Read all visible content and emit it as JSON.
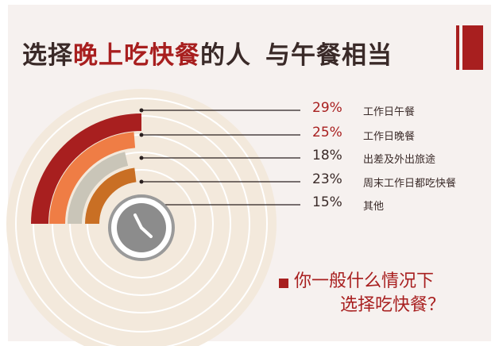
{
  "title": {
    "part1": "选择",
    "part2": "晚上吃快餐",
    "part3": "的人",
    "part4": "与午餐相当"
  },
  "chart_data": {
    "type": "radial-bar",
    "categories": [
      "工作日午餐",
      "工作日晚餐",
      "出差及外出旅途",
      "周末工作日都吃快餐",
      "其他"
    ],
    "values": [
      29,
      25,
      18,
      23,
      15
    ],
    "value_labels": [
      "29%",
      "25%",
      "18%",
      "23%",
      "15%"
    ],
    "colors": [
      "#a81f1f",
      "#ef7d45",
      "#c9c5b8",
      "#c96f24",
      "#b0b0b0"
    ],
    "label_colors": [
      "#a81f1f",
      "#a81f1f",
      "#3a2a28",
      "#3a2a28",
      "#3a2a28"
    ]
  },
  "question": {
    "line1": "你一般什么情况下",
    "line2": "选择吃快餐？"
  },
  "icons": [
    "clock-icon"
  ]
}
